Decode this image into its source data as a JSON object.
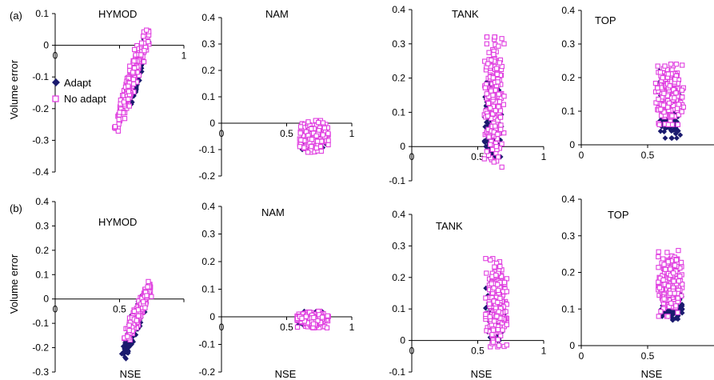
{
  "figure": {
    "row_labels": [
      "(a)",
      "(b)"
    ],
    "y_axis_label": "Volume error",
    "x_axis_label": "NSE",
    "legend": {
      "placement": "left",
      "items": [
        {
          "label": "Adapt",
          "marker": "filled-diamond"
        },
        {
          "label": "No adapt",
          "marker": "open-square"
        }
      ]
    }
  },
  "colors": {
    "adapt": "#1a1a6e",
    "no_adapt": "#e040e0",
    "axis": "#000000",
    "text": "#000000"
  },
  "chart_data": [
    {
      "type": "scatter",
      "panel_id": "a-HYMOD",
      "title": "HYMOD",
      "xlabel": "",
      "ylabel": "Volume error",
      "xlim": [
        0,
        1
      ],
      "ylim": [
        -0.4,
        0.1
      ],
      "x_ticks": [
        0,
        0.5,
        1
      ],
      "y_ticks": [
        0.1,
        0,
        -0.1,
        -0.2,
        -0.3,
        -0.4
      ],
      "x_tick_labels": [
        "0",
        "",
        "1"
      ],
      "grid": false,
      "legend": "left",
      "series": [
        {
          "name": "Adapt",
          "marker": "filled-diamond",
          "x_range": [
            0.55,
            0.73
          ],
          "y_range": [
            -0.22,
            0.05
          ],
          "trend": "positive"
        },
        {
          "name": "No adapt",
          "marker": "open-square",
          "x_range": [
            0.45,
            0.74
          ],
          "y_range": [
            -0.28,
            0.07
          ],
          "trend": "positive"
        }
      ]
    },
    {
      "type": "scatter",
      "panel_id": "a-NAM",
      "title": "NAM",
      "xlabel": "",
      "ylabel": "",
      "xlim": [
        0,
        1
      ],
      "ylim": [
        -0.2,
        0.4
      ],
      "x_ticks": [
        0,
        0.5,
        1
      ],
      "y_ticks": [
        0.4,
        0.3,
        0.2,
        0.1,
        0,
        -0.1,
        -0.2
      ],
      "grid": false,
      "series": [
        {
          "name": "Adapt",
          "marker": "filled-diamond",
          "x_range": [
            0.62,
            0.8
          ],
          "y_range": [
            -0.1,
            -0.01
          ],
          "trend": "none"
        },
        {
          "name": "No adapt",
          "marker": "open-square",
          "x_range": [
            0.6,
            0.82
          ],
          "y_range": [
            -0.11,
            0.01
          ],
          "trend": "none"
        }
      ]
    },
    {
      "type": "scatter",
      "panel_id": "a-TANK",
      "title": "TANK",
      "xlabel": "",
      "ylabel": "",
      "xlim": [
        0,
        1
      ],
      "ylim": [
        -0.1,
        0.4
      ],
      "x_ticks": [
        0,
        0.5,
        1
      ],
      "y_ticks": [
        0.4,
        0.3,
        0.2,
        0.1,
        0,
        -0.1
      ],
      "grid": false,
      "series": [
        {
          "name": "Adapt",
          "marker": "filled-diamond",
          "x_range": [
            0.55,
            0.68
          ],
          "y_range": [
            -0.03,
            0.19
          ],
          "trend": "none"
        },
        {
          "name": "No adapt",
          "marker": "open-square",
          "x_range": [
            0.55,
            0.7
          ],
          "y_range": [
            -0.06,
            0.32
          ],
          "trend": "none"
        }
      ]
    },
    {
      "type": "scatter",
      "panel_id": "a-TOP",
      "title": "TOP",
      "xlabel": "",
      "ylabel": "",
      "xlim": [
        0,
        1
      ],
      "ylim": [
        0,
        0.4
      ],
      "x_ticks": [
        0,
        0.5
      ],
      "y_ticks": [
        0.4,
        0.3,
        0.2,
        0.1,
        0
      ],
      "grid": false,
      "series": [
        {
          "name": "Adapt",
          "marker": "filled-diamond",
          "x_range": [
            0.58,
            0.75
          ],
          "y_range": [
            0.02,
            0.22
          ],
          "trend": "none"
        },
        {
          "name": "No adapt",
          "marker": "open-square",
          "x_range": [
            0.56,
            0.77
          ],
          "y_range": [
            0.06,
            0.24
          ],
          "trend": "none"
        }
      ]
    },
    {
      "type": "scatter",
      "panel_id": "b-HYMOD",
      "title": "HYMOD",
      "xlabel": "NSE",
      "ylabel": "Volume error",
      "xlim": [
        0,
        1
      ],
      "ylim": [
        -0.3,
        0.4
      ],
      "x_ticks": [
        0,
        0.5,
        1
      ],
      "y_ticks": [
        0.4,
        0.3,
        0.2,
        0.1,
        0,
        -0.1,
        -0.2,
        -0.3
      ],
      "x_tick_labels": [
        "0",
        "0.5",
        ""
      ],
      "grid": false,
      "series": [
        {
          "name": "Adapt",
          "marker": "filled-diamond",
          "x_range": [
            0.5,
            0.75
          ],
          "y_range": [
            -0.26,
            0.07
          ],
          "trend": "positive"
        },
        {
          "name": "No adapt",
          "marker": "open-square",
          "x_range": [
            0.52,
            0.77
          ],
          "y_range": [
            -0.19,
            0.08
          ],
          "trend": "positive"
        }
      ]
    },
    {
      "type": "scatter",
      "panel_id": "b-NAM",
      "title": "NAM",
      "xlabel": "NSE",
      "ylabel": "",
      "xlim": [
        0,
        1
      ],
      "ylim": [
        -0.2,
        0.4
      ],
      "x_ticks": [
        0,
        0.5,
        1
      ],
      "y_ticks": [
        0.4,
        0.3,
        0.2,
        0.1,
        0,
        -0.1,
        -0.2
      ],
      "grid": false,
      "series": [
        {
          "name": "Adapt",
          "marker": "filled-diamond",
          "x_range": [
            0.58,
            0.8
          ],
          "y_range": [
            -0.03,
            0.02
          ],
          "trend": "none"
        },
        {
          "name": "No adapt",
          "marker": "open-square",
          "x_range": [
            0.58,
            0.82
          ],
          "y_range": [
            -0.04,
            0.02
          ],
          "trend": "none"
        }
      ]
    },
    {
      "type": "scatter",
      "panel_id": "b-TANK",
      "title": "TANK",
      "xlabel": "NSE",
      "ylabel": "",
      "xlim": [
        0,
        1
      ],
      "ylim": [
        -0.1,
        0.4
      ],
      "x_ticks": [
        0,
        0.5,
        1
      ],
      "y_ticks": [
        0.4,
        0.3,
        0.2,
        0.1,
        0,
        -0.1
      ],
      "grid": false,
      "series": [
        {
          "name": "Adapt",
          "marker": "filled-diamond",
          "x_range": [
            0.56,
            0.7
          ],
          "y_range": [
            0.0,
            0.2
          ],
          "trend": "none"
        },
        {
          "name": "No adapt",
          "marker": "open-square",
          "x_range": [
            0.56,
            0.72
          ],
          "y_range": [
            -0.02,
            0.26
          ],
          "trend": "none"
        }
      ]
    },
    {
      "type": "scatter",
      "panel_id": "b-TOP",
      "title": "TOP",
      "xlabel": "NSE",
      "ylabel": "",
      "xlim": [
        0,
        1
      ],
      "ylim": [
        0,
        0.4
      ],
      "x_ticks": [
        0,
        0.5
      ],
      "y_ticks": [
        0.4,
        0.3,
        0.2,
        0.1,
        0
      ],
      "grid": false,
      "series": [
        {
          "name": "Adapt",
          "marker": "filled-diamond",
          "x_range": [
            0.6,
            0.76
          ],
          "y_range": [
            0.07,
            0.17
          ],
          "trend": "none"
        },
        {
          "name": "No adapt",
          "marker": "open-square",
          "x_range": [
            0.58,
            0.76
          ],
          "y_range": [
            0.08,
            0.26
          ],
          "trend": "none"
        }
      ]
    }
  ]
}
